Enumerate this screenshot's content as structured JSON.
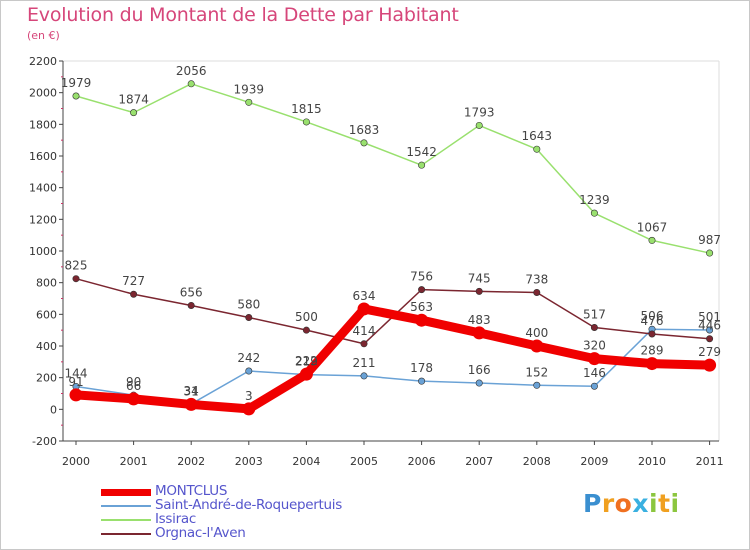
{
  "header": {
    "title": "Evolution du Montant de la Dette par Habitant",
    "subtitle": "(en €)"
  },
  "logo": {
    "text": "Proxiti",
    "letters": [
      {
        "ch": "P",
        "color": "#3a8fd0"
      },
      {
        "ch": "r",
        "color": "#f0a020"
      },
      {
        "ch": "o",
        "color": "#f07020"
      },
      {
        "ch": "x",
        "color": "#3ab0e0"
      },
      {
        "ch": "i",
        "color": "#8cc63f"
      },
      {
        "ch": "t",
        "color": "#f0a020"
      },
      {
        "ch": "i",
        "color": "#8cc63f"
      }
    ]
  },
  "chart_data": {
    "type": "line",
    "title": "Evolution du Montant de la Dette par Habitant",
    "subtitle": "(en €)",
    "x": [
      "2000",
      "2001",
      "2002",
      "2003",
      "2004",
      "2005",
      "2006",
      "2007",
      "2008",
      "2009",
      "2010",
      "2011"
    ],
    "ylim": [
      -200,
      2200
    ],
    "yticks": [
      "-200",
      "0",
      "200",
      "400",
      "600",
      "800",
      "1000",
      "1200",
      "1400",
      "1600",
      "1800",
      "2000",
      "2200"
    ],
    "grid": false,
    "legend_position": "bottom-left",
    "series": [
      {
        "name": "Saint-André-de-Roquepertuis",
        "color": "#6aa2d6",
        "values": [
          144,
          90,
          34,
          242,
          219,
          211,
          178,
          166,
          152,
          146,
          506,
          501
        ],
        "labels": [
          "144",
          "90",
          "34",
          "242",
          "219",
          "211",
          "178",
          "166",
          "152",
          "146",
          "506",
          "501"
        ]
      },
      {
        "name": "Issirac",
        "color": "#99e06e",
        "values": [
          1979,
          1874,
          2056,
          1939,
          1815,
          1683,
          1542,
          1793,
          1643,
          1239,
          1067,
          987
        ],
        "labels": [
          "1979",
          "1874",
          "2056",
          "1939",
          "1815",
          "1683",
          "1542",
          "1793",
          "1643",
          "1239",
          "1067",
          "987"
        ]
      },
      {
        "name": "Orgnac-l'Aven",
        "color": "#7b2630",
        "values": [
          825,
          727,
          656,
          580,
          500,
          414,
          756,
          745,
          738,
          517,
          476,
          446
        ],
        "labels": [
          "825",
          "727",
          "656",
          "580",
          "500",
          "414",
          "756",
          "745",
          "738",
          "517",
          "476",
          "446"
        ]
      },
      {
        "name": "MONTCLUS",
        "color": "#f00000",
        "values": [
          91,
          66,
          31,
          3,
          222,
          634,
          563,
          483,
          400,
          320,
          289,
          279
        ],
        "labels": [
          "91",
          "66",
          "31",
          "3",
          "222",
          "634",
          "563",
          "483",
          "400",
          "320",
          "289",
          "279"
        ]
      }
    ]
  },
  "legend": {
    "items": [
      {
        "label": "MONTCLUS",
        "color": "#f00000",
        "text_color": "#5555cc"
      },
      {
        "label": "Saint-André-de-Roquepertuis",
        "color": "#6aa2d6",
        "text_color": "#5555cc"
      },
      {
        "label": "Issirac",
        "color": "#99e06e",
        "text_color": "#5555cc"
      },
      {
        "label": "Orgnac-l'Aven",
        "color": "#7b2630",
        "text_color": "#5555cc"
      }
    ]
  }
}
